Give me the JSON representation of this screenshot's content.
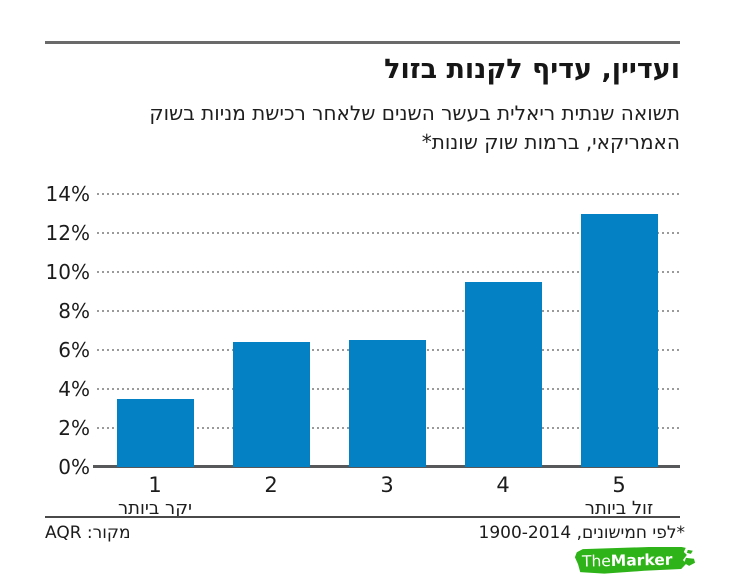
{
  "chart_data": {
    "type": "bar",
    "title": "ועדיין, עדיף לקנות בזול",
    "subtitle_lines": [
      "תשואה שנתית ריאלית בעשר השנים שלאחר רכישת מניות בשוק",
      "האמריקאי, ברמות שוק שונות*"
    ],
    "categories": [
      "1",
      "2",
      "3",
      "4",
      "5"
    ],
    "values": [
      3.5,
      6.4,
      6.5,
      9.5,
      13
    ],
    "category_sublabels": [
      "יקר ביותר",
      "",
      "",
      "",
      "זול ביותר"
    ],
    "xlabel": "",
    "ylabel": "",
    "ylim": [
      0,
      14
    ],
    "ytick_step": 2,
    "ytick_suffix": "%",
    "grid": "horizontal-dotted",
    "legend": "none",
    "bar_color": "#0481c4"
  },
  "footer": {
    "source": "מקור: AQR",
    "footnote": "*לפי חמישונים, 1900-2014"
  },
  "logo": {
    "the": "The",
    "marker": "Marker",
    "bg_color": "#2eb318",
    "text_color": "#ffffff"
  }
}
